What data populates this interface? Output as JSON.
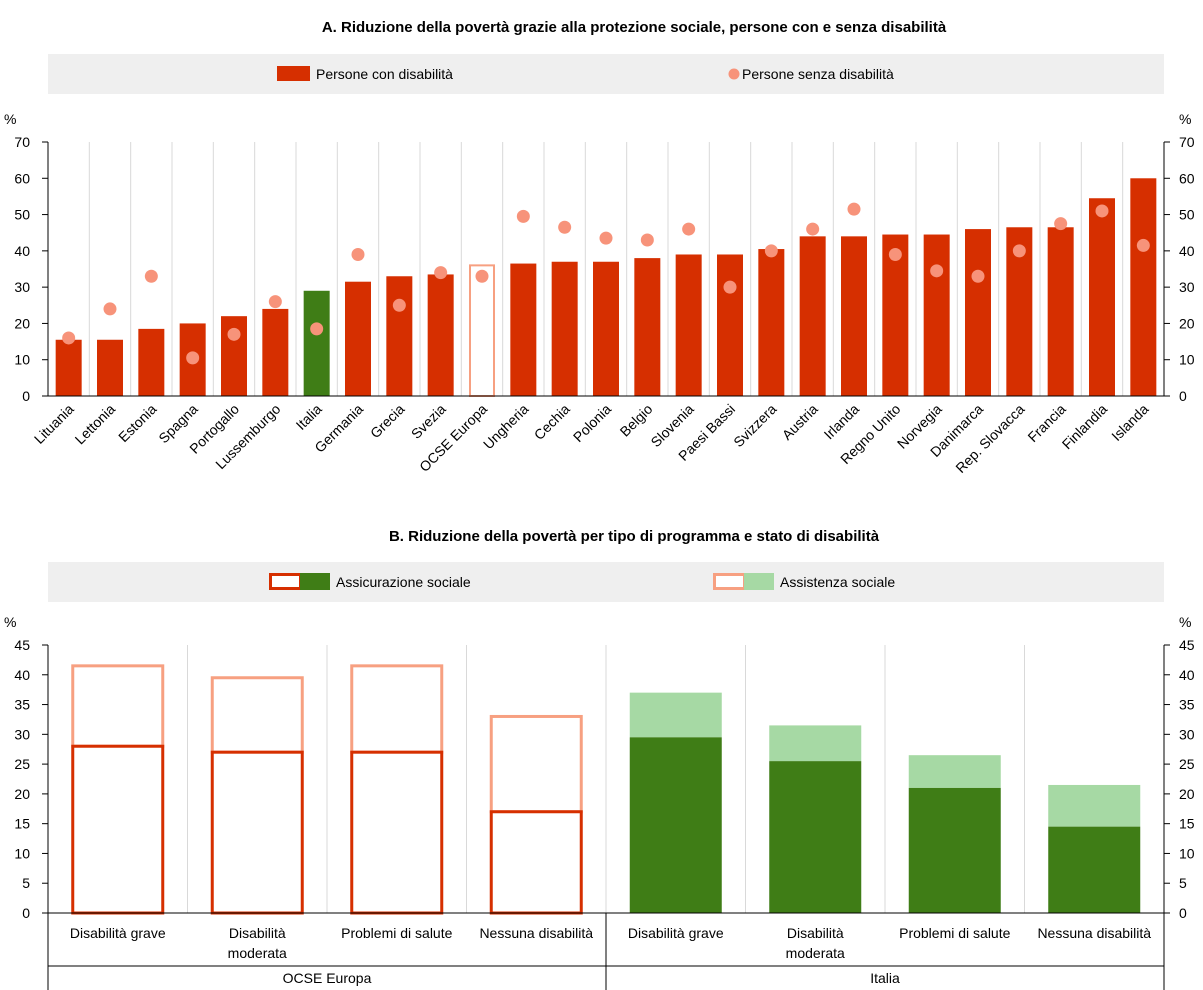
{
  "panel_a": {
    "title": "A. Riduzione della povertà grazie alla protezione sociale, persone con e senza disabilità",
    "unit_left": "%",
    "unit_right": "%",
    "legend": {
      "bar": "Persone con disabilità",
      "dot": "Persone senza disabilità"
    }
  },
  "panel_b": {
    "title": "B. Riduzione della povertà per tipo di programma e stato di disabilità",
    "unit_left": "%",
    "unit_right": "%",
    "legend": {
      "insurance": "Assicurazione sociale",
      "assistance": "Assistenza sociale"
    }
  },
  "colors": {
    "bar_red": "#d62f00",
    "bar_green": "#3f7d16",
    "light_green": "#a6d9a4",
    "dot": "#f7937a",
    "oecd_outline": "#f7a081",
    "panel_bg": "#efefef",
    "grid": "#d9d9d9"
  },
  "chart_data": [
    {
      "type": "bar",
      "title": "A. Riduzione della povertà grazie alla protezione sociale, persone con e senza disabilità",
      "ylabel": "%",
      "ylim": [
        0,
        70
      ],
      "yticks": [
        0,
        10,
        20,
        30,
        40,
        50,
        60,
        70
      ],
      "grid": true,
      "legend_position": "top",
      "categories": [
        "Lituania",
        "Lettonia",
        "Estonia",
        "Spagna",
        "Portogallo",
        "Lussemburgo",
        "Italia",
        "Germania",
        "Grecia",
        "Svezia",
        "OCSE Europa",
        "Ungheria",
        "Cechia",
        "Polonia",
        "Belgio",
        "Slovenia",
        "Paesi Bassi",
        "Svizzera",
        "Austria",
        "Irlanda",
        "Regno Unito",
        "Norvegia",
        "Danimarca",
        "Rep. Slovacca",
        "Francia",
        "Finlandia",
        "Islanda"
      ],
      "series": [
        {
          "name": "Persone con disabilità",
          "kind": "bar",
          "values": [
            15.5,
            15.5,
            18.5,
            20,
            22,
            24,
            29,
            31.5,
            33,
            33.5,
            36,
            36.5,
            37,
            37,
            38,
            39,
            39,
            40.5,
            44,
            44,
            44.5,
            44.5,
            46,
            46.5,
            46.5,
            54.5,
            60
          ]
        },
        {
          "name": "Persone senza disabilità",
          "kind": "marker",
          "values": [
            16,
            24,
            33,
            10.5,
            17,
            26,
            18.5,
            39,
            25,
            34,
            33,
            49.5,
            46.5,
            43.5,
            43,
            46,
            30,
            40,
            46,
            51.5,
            39,
            34.5,
            33,
            40,
            47.5,
            51,
            41.5
          ]
        }
      ],
      "highlight": {
        "Italia": "green",
        "OCSE Europa": "outline"
      }
    },
    {
      "type": "bar",
      "stacked": true,
      "title": "B. Riduzione della povertà per tipo di programma e stato di disabilità",
      "ylabel": "%",
      "ylim": [
        0,
        45
      ],
      "yticks": [
        0,
        5,
        10,
        15,
        20,
        25,
        30,
        35,
        40,
        45
      ],
      "grid": true,
      "legend_position": "top",
      "groups": [
        {
          "label": "OCSE Europa",
          "categories": [
            "Disabilità grave",
            "Disabilità moderata",
            "Problemi di salute",
            "Nessuna disabilità"
          ],
          "insurance": [
            28,
            27,
            27,
            17
          ],
          "assistance": [
            13.5,
            12.5,
            14.5,
            16
          ]
        },
        {
          "label": "Italia",
          "categories": [
            "Disabilità grave",
            "Disabilità moderata",
            "Problemi di salute",
            "Nessuna disabilità"
          ],
          "insurance": [
            29.5,
            25.5,
            21,
            14.5
          ],
          "assistance": [
            7.5,
            6,
            5.5,
            7
          ]
        }
      ],
      "series_names": [
        "Assicurazione sociale",
        "Assistenza sociale"
      ]
    }
  ]
}
